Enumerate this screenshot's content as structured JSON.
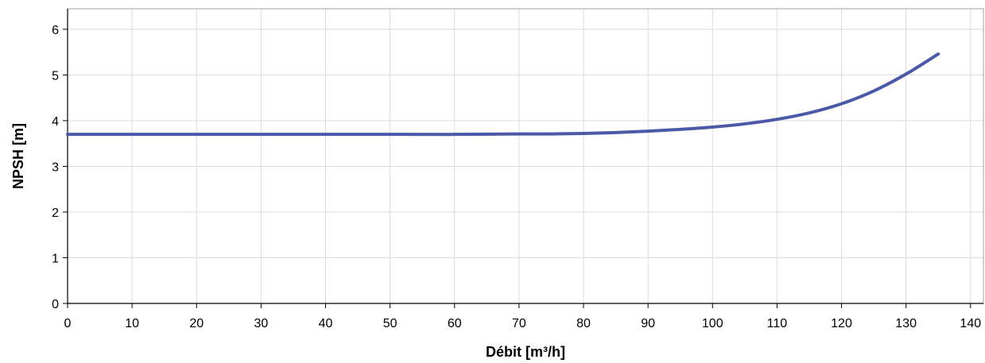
{
  "chart_data": {
    "type": "line",
    "title": "",
    "xlabel": "Débit [m³/h]",
    "ylabel": "NPSH [m]",
    "xlim": [
      0,
      142
    ],
    "ylim": [
      0,
      6.45
    ],
    "xticks": [
      "0",
      "10",
      "20",
      "30",
      "40",
      "50",
      "60",
      "70",
      "80",
      "90",
      "100",
      "110",
      "120",
      "130",
      "140"
    ],
    "yticks": [
      "0",
      "1",
      "2",
      "3",
      "4",
      "5",
      "6"
    ],
    "grid": true,
    "legend": "none",
    "series": [
      {
        "color": "#4a5aa8",
        "x": [
          0,
          10,
          20,
          30,
          40,
          50,
          60,
          70,
          75,
          80,
          85,
          90,
          95,
          100,
          105,
          110,
          115,
          120,
          125,
          130,
          135
        ],
        "y": [
          3.7,
          3.7,
          3.7,
          3.7,
          3.7,
          3.7,
          3.7,
          3.71,
          3.71,
          3.72,
          3.74,
          3.77,
          3.81,
          3.86,
          3.93,
          4.03,
          4.17,
          4.37,
          4.65,
          5.02,
          5.46
        ]
      }
    ]
  },
  "colors": {
    "grid": "#dcdcdc",
    "axis": "#000000",
    "frame": "#a0a0a0"
  }
}
